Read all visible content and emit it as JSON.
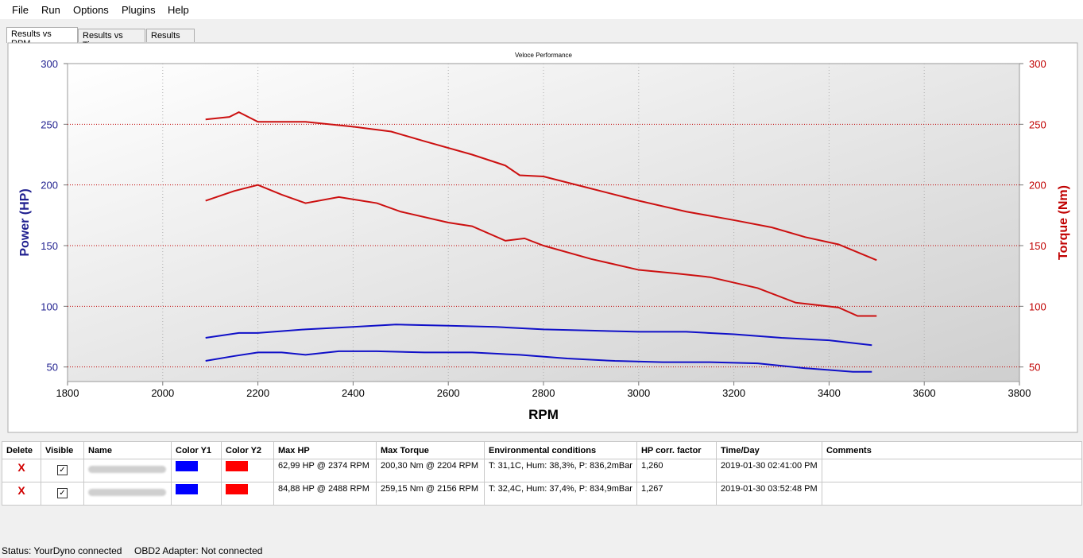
{
  "menu": [
    "File",
    "Run",
    "Options",
    "Plugins",
    "Help"
  ],
  "tabs": [
    "Results vs RPM",
    "Results vs Time",
    "Results vs"
  ],
  "chart_data": {
    "type": "line",
    "title": "Veloce Performance",
    "x_label": "RPM",
    "y_label": "Power (HP)",
    "y2_label": "Torque (Nm)",
    "xlim": [
      1800,
      3800
    ],
    "xticks": [
      1800,
      2000,
      2200,
      2400,
      2600,
      2800,
      3000,
      3200,
      3400,
      3600,
      3800
    ],
    "ylim": [
      38,
      300
    ],
    "yticks": [
      50,
      100,
      150,
      200,
      250,
      300
    ],
    "y2lim": [
      38,
      300
    ],
    "y2ticks": [
      50,
      100,
      150,
      200,
      250,
      300
    ],
    "y_color": "#1f1f8f",
    "y2_color": "#c00000",
    "grid": true,
    "series": [
      {
        "color": "#1010c8",
        "x": [
          2090,
          2150,
          2200,
          2250,
          2300,
          2370,
          2450,
          2550,
          2650,
          2750,
          2850,
          2950,
          3050,
          3150,
          3250,
          3350,
          3450,
          3490
        ],
        "values": [
          55,
          59,
          62,
          62,
          60,
          63,
          63,
          62,
          62,
          60,
          57,
          55,
          54,
          54,
          53,
          49,
          46,
          46
        ]
      },
      {
        "color": "#1010c8",
        "x": [
          2090,
          2160,
          2200,
          2300,
          2400,
          2490,
          2600,
          2700,
          2800,
          2900,
          3000,
          3100,
          3200,
          3300,
          3400,
          3490
        ],
        "values": [
          74,
          78,
          78,
          81,
          83,
          85,
          84,
          83,
          81,
          80,
          79,
          79,
          77,
          74,
          72,
          68
        ]
      },
      {
        "color": "#cc1010",
        "axis": "y2",
        "x": [
          2090,
          2150,
          2200,
          2250,
          2300,
          2370,
          2450,
          2500,
          2600,
          2650,
          2720,
          2760,
          2800,
          2900,
          3000,
          3080,
          3150,
          3250,
          3330,
          3420,
          3460,
          3500
        ],
        "values": [
          187,
          195,
          200,
          192,
          185,
          190,
          185,
          178,
          169,
          166,
          154,
          156,
          150,
          139,
          130,
          127,
          124,
          115,
          103,
          99,
          92,
          92
        ]
      },
      {
        "color": "#cc1010",
        "axis": "y2",
        "x": [
          2090,
          2140,
          2160,
          2200,
          2300,
          2400,
          2480,
          2550,
          2650,
          2720,
          2750,
          2800,
          2900,
          3000,
          3100,
          3200,
          3280,
          3350,
          3420,
          3500
        ],
        "values": [
          254,
          256,
          260,
          252,
          252,
          248,
          244,
          236,
          225,
          216,
          208,
          207,
          197,
          187,
          178,
          171,
          165,
          157,
          151,
          138
        ]
      }
    ]
  },
  "table": {
    "headers": [
      "Delete",
      "Visible",
      "Name",
      "Color Y1",
      "Color Y2",
      "Max HP",
      "Max Torque",
      "Environmental conditions",
      "HP corr. factor",
      "Time/Day",
      "Comments"
    ],
    "rows": [
      {
        "delete": "X",
        "max_hp": "62,99 HP @ 2374 RPM",
        "max_torque": "200,30 Nm @ 2204 RPM",
        "env": "T: 31,1C, Hum: 38,3%, P: 836,2mBar",
        "corr": "1,260",
        "time": "2019-01-30 02:41:00 PM"
      },
      {
        "delete": "X",
        "max_hp": "84,88 HP @ 2488 RPM",
        "max_torque": "259,15 Nm @ 2156 RPM",
        "env": "T: 32,4C, Hum: 37,4%, P: 834,9mBar",
        "corr": "1,267",
        "time": "2019-01-30 03:52:48 PM"
      }
    ]
  },
  "status": [
    "Status: YourDyno connected",
    "OBD2 Adapter: Not connected"
  ]
}
